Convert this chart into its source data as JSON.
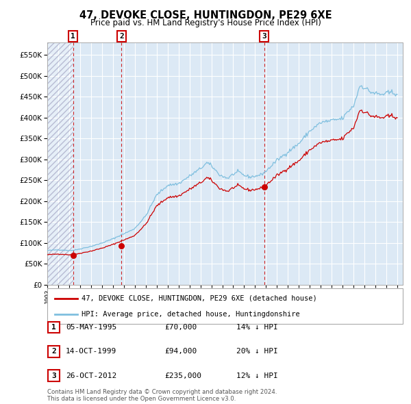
{
  "title": "47, DEVOKE CLOSE, HUNTINGDON, PE29 6XE",
  "subtitle": "Price paid vs. HM Land Registry's House Price Index (HPI)",
  "legend_line1": "47, DEVOKE CLOSE, HUNTINGDON, PE29 6XE (detached house)",
  "legend_line2": "HPI: Average price, detached house, Huntingdonshire",
  "transactions": [
    {
      "num": 1,
      "date": "05-MAY-1995",
      "date_float": 1995.35,
      "price": 70000,
      "hpi_pct": "14% ↓ HPI"
    },
    {
      "num": 2,
      "date": "14-OCT-1999",
      "date_float": 1999.79,
      "price": 94000,
      "hpi_pct": "20% ↓ HPI"
    },
    {
      "num": 3,
      "date": "26-OCT-2012",
      "date_float": 2012.82,
      "price": 235000,
      "hpi_pct": "12% ↓ HPI"
    }
  ],
  "hpi_color": "#7fbfdf",
  "price_color": "#cc0000",
  "dot_color": "#cc0000",
  "vline_color": "#cc0000",
  "plot_bg_color": "#dce9f5",
  "hatch_region_end": 1995.35,
  "ylim": [
    0,
    580000
  ],
  "yticks": [
    0,
    50000,
    100000,
    150000,
    200000,
    250000,
    300000,
    350000,
    400000,
    450000,
    500000,
    550000
  ],
  "xlim_start": 1993.0,
  "xlim_end": 2025.5,
  "footer_line1": "Contains HM Land Registry data © Crown copyright and database right 2024.",
  "footer_line2": "This data is licensed under the Open Government Licence v3.0."
}
